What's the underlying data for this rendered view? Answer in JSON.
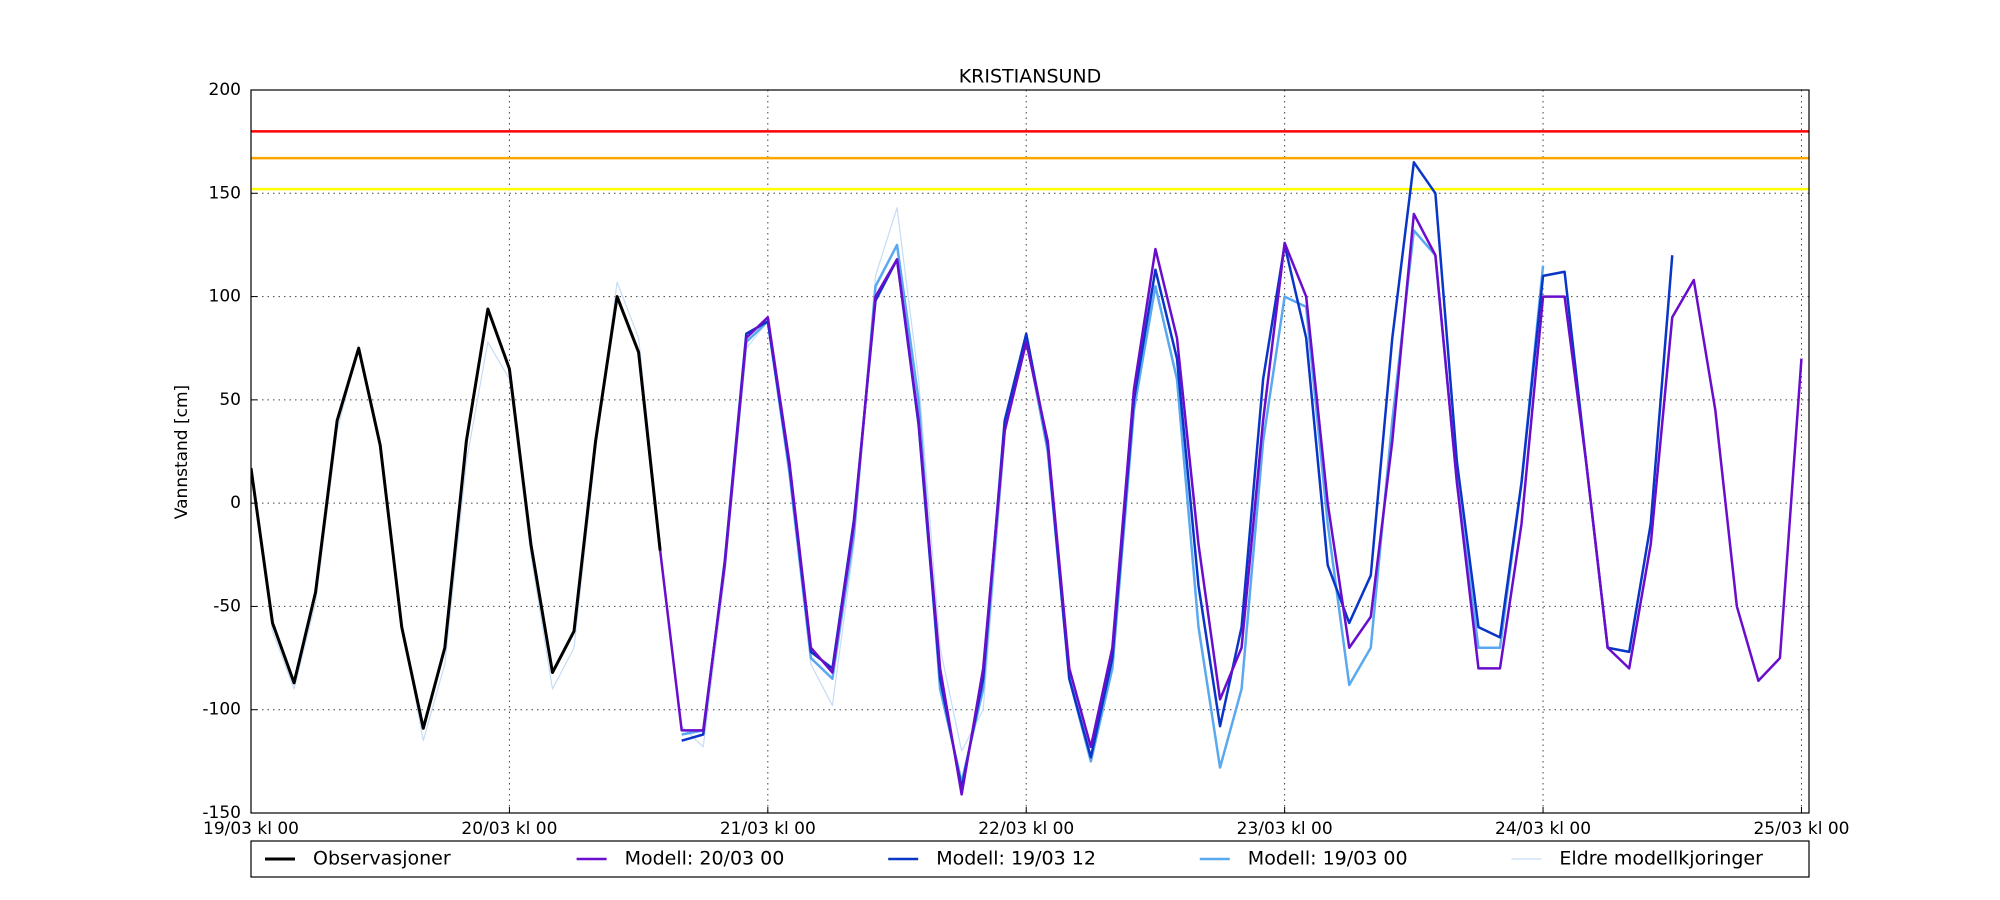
{
  "chart_data": {
    "type": "line",
    "title": "KRISTIANSUND",
    "y_label": "Vannstand [cm]",
    "grid": true,
    "legend": "bottom",
    "xlim": [
      0,
      144.7
    ],
    "ylim": [
      -150,
      200
    ],
    "yticks": [
      -150,
      -100,
      -50,
      0,
      50,
      100,
      150,
      200
    ],
    "xticks": [
      {
        "value": 0,
        "label": "19/03 kl 00"
      },
      {
        "value": 24,
        "label": "20/03 kl 00"
      },
      {
        "value": 48,
        "label": "21/03 kl 00"
      },
      {
        "value": 72,
        "label": "22/03 kl 00"
      },
      {
        "value": 96,
        "label": "23/03 kl 00"
      },
      {
        "value": 120,
        "label": "24/03 kl 00"
      },
      {
        "value": 144,
        "label": "25/03 kl 00"
      }
    ],
    "thresholds": [
      {
        "value": 180,
        "color": "#ff0000"
      },
      {
        "value": 167,
        "color": "#ffa500"
      },
      {
        "value": 152,
        "color": "#ffff00"
      }
    ],
    "x": [
      0,
      2,
      4,
      6,
      8,
      10,
      12,
      14,
      16,
      18,
      20,
      22,
      24,
      26,
      28,
      30,
      32,
      34,
      36,
      38,
      40,
      42,
      44,
      46,
      48,
      50,
      52,
      54,
      56,
      58,
      60,
      62,
      64,
      66,
      68,
      70,
      72,
      74,
      76,
      78,
      80,
      82,
      84,
      86,
      88,
      90,
      92,
      94,
      96,
      98,
      100,
      102,
      104,
      106,
      108,
      110,
      112,
      114,
      116,
      118,
      120,
      122,
      124,
      126,
      128,
      130,
      132,
      134,
      136,
      138,
      140,
      142,
      144
    ],
    "series": [
      {
        "name": "Observasjoner",
        "color": "#000000",
        "width": 3,
        "values": [
          17,
          -58,
          -87,
          -43,
          40,
          75,
          28,
          -60,
          -109,
          -70,
          30,
          94,
          65,
          -20,
          -82,
          -62,
          30,
          100,
          73,
          -23,
          null,
          null,
          null,
          null,
          null,
          null,
          null,
          null,
          null,
          null,
          null,
          null,
          null,
          null,
          null,
          null,
          null,
          null,
          null,
          null,
          null,
          null,
          null,
          null,
          null,
          null,
          null,
          null,
          null,
          null,
          null,
          null,
          null,
          null,
          null,
          null,
          null,
          null,
          null,
          null,
          null,
          null,
          null,
          null,
          null,
          null,
          null,
          null,
          null,
          null,
          null,
          null,
          null
        ]
      },
      {
        "name": "Modell: 20/03 00",
        "color": "#6a0dcc",
        "width": 2.5,
        "values": [
          null,
          null,
          null,
          null,
          null,
          null,
          null,
          null,
          null,
          null,
          null,
          null,
          null,
          null,
          null,
          null,
          null,
          null,
          73,
          -23,
          -110,
          -110,
          -30,
          80,
          90,
          20,
          -70,
          -82,
          -10,
          100,
          118,
          40,
          -80,
          -141,
          -80,
          35,
          78,
          30,
          -80,
          -118,
          -70,
          55,
          123,
          80,
          -20,
          -95,
          -70,
          40,
          126,
          100,
          0,
          -70,
          -55,
          30,
          140,
          120,
          10,
          -80,
          -80,
          -10,
          100,
          100,
          20,
          -70,
          -80,
          -20,
          90,
          108,
          45,
          -50,
          -86,
          -75,
          70
        ]
      },
      {
        "name": "Modell: 19/03 12",
        "color": "#0a36c8",
        "width": 2.5,
        "values": [
          null,
          null,
          null,
          null,
          null,
          null,
          null,
          null,
          null,
          null,
          null,
          null,
          null,
          null,
          null,
          null,
          null,
          null,
          null,
          null,
          -115,
          -112,
          -28,
          82,
          88,
          18,
          -72,
          -80,
          -8,
          98,
          118,
          38,
          -85,
          -138,
          -85,
          40,
          82,
          28,
          -85,
          -123,
          -75,
          50,
          113,
          70,
          -40,
          -108,
          -60,
          60,
          125,
          80,
          -30,
          -58,
          -35,
          80,
          165,
          150,
          20,
          -60,
          -65,
          10,
          110,
          112,
          20,
          -70,
          -72,
          -10,
          120,
          null,
          null,
          null,
          null,
          null,
          null
        ]
      },
      {
        "name": "Modell: 19/03 00",
        "color": "#5aa9f0",
        "width": 2.5,
        "values": [
          null,
          null,
          null,
          null,
          null,
          null,
          null,
          null,
          null,
          null,
          null,
          null,
          null,
          null,
          null,
          null,
          null,
          null,
          null,
          null,
          -112,
          -110,
          -30,
          78,
          88,
          15,
          -75,
          -85,
          -15,
          105,
          125,
          50,
          -90,
          -135,
          -90,
          35,
          80,
          25,
          -85,
          -125,
          -80,
          45,
          105,
          60,
          -60,
          -128,
          -90,
          30,
          100,
          95,
          -10,
          -88,
          -70,
          40,
          132,
          120,
          10,
          -70,
          -70,
          10,
          115,
          null,
          null,
          null,
          null,
          null,
          null,
          null,
          null,
          null,
          null,
          null,
          null
        ]
      },
      {
        "name": "Eldre modellkjoringer",
        "color": "#c6dcf5",
        "width": 1.2,
        "values": [
          15,
          -62,
          -90,
          -48,
          35,
          76,
          30,
          -58,
          -115,
          -78,
          20,
          78,
          60,
          -25,
          -90,
          -70,
          25,
          107,
          80,
          -20,
          -108,
          -118,
          -35,
          75,
          88,
          15,
          -78,
          -98,
          -20,
          110,
          143,
          60,
          -70,
          -120,
          -100,
          30,
          null,
          null,
          null,
          null,
          null,
          null,
          null,
          null,
          null,
          null,
          null,
          null,
          null,
          null,
          null,
          null,
          null,
          null,
          null,
          null,
          null,
          null,
          null,
          null,
          null,
          null,
          null,
          null,
          null,
          null,
          null,
          null,
          null,
          null,
          null,
          null,
          null
        ]
      }
    ]
  }
}
